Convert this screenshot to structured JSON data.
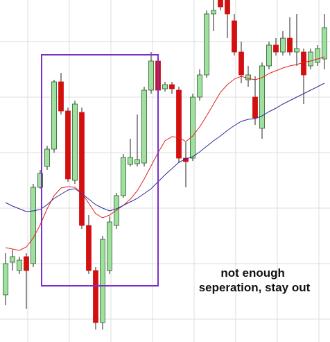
{
  "chart_data": {
    "type": "candlestick",
    "ylim": [
      0,
      493
    ],
    "up_color": "#9fe09f",
    "down_color": "#d40f0f",
    "candles": [
      {
        "open": 68,
        "high": 128,
        "low": 53,
        "close": 113
      },
      {
        "open": 115,
        "high": 133,
        "low": 103,
        "close": 123
      },
      {
        "open": 103,
        "high": 123,
        "low": 98,
        "close": 118
      },
      {
        "open": 123,
        "high": 128,
        "low": 48,
        "close": 103
      },
      {
        "open": 113,
        "high": 228,
        "low": 108,
        "close": 223
      },
      {
        "open": 223,
        "high": 248,
        "low": 221,
        "close": 243
      },
      {
        "open": 253,
        "high": 283,
        "low": 248,
        "close": 278
      },
      {
        "open": 278,
        "high": 378,
        "low": 273,
        "close": 375
      },
      {
        "open": 375,
        "high": 388,
        "low": 328,
        "close": 333
      },
      {
        "open": 333,
        "high": 338,
        "low": 231,
        "close": 235
      },
      {
        "open": 233,
        "high": 348,
        "low": 228,
        "close": 343
      },
      {
        "open": 331,
        "high": 338,
        "low": 163,
        "close": 168
      },
      {
        "open": 168,
        "high": 183,
        "low": 98,
        "close": 103
      },
      {
        "open": 103,
        "high": 108,
        "low": 18,
        "close": 28
      },
      {
        "open": 28,
        "high": 153,
        "low": 18,
        "close": 148
      },
      {
        "open": 103,
        "high": 181,
        "low": 98,
        "close": 173
      },
      {
        "open": 168,
        "high": 215,
        "low": 163,
        "close": 211
      },
      {
        "open": 211,
        "high": 271,
        "low": 208,
        "close": 266
      },
      {
        "open": 256,
        "high": 293,
        "low": 253,
        "close": 266
      },
      {
        "open": 257,
        "high": 328,
        "low": 253,
        "close": 263
      },
      {
        "open": 258,
        "high": 368,
        "low": 253,
        "close": 363
      },
      {
        "open": 363,
        "high": 418,
        "low": 358,
        "close": 405
      },
      {
        "open": 405,
        "high": 408,
        "low": 318,
        "close": 363
      },
      {
        "open": 365,
        "high": 375,
        "low": 361,
        "close": 371
      },
      {
        "open": 371,
        "high": 375,
        "low": 358,
        "close": 365
      },
      {
        "open": 363,
        "high": 368,
        "low": 258,
        "close": 265
      },
      {
        "open": 265,
        "high": 288,
        "low": 223,
        "close": 260
      },
      {
        "open": 265,
        "high": 358,
        "low": 261,
        "close": 353
      },
      {
        "open": 353,
        "high": 393,
        "low": 348,
        "close": 385
      },
      {
        "open": 385,
        "high": 478,
        "low": 381,
        "close": 473
      },
      {
        "open": 473,
        "high": 493,
        "low": 448,
        "close": 478
      },
      {
        "open": 493,
        "high": 493,
        "low": 478,
        "close": 483
      },
      {
        "open": 493,
        "high": 493,
        "low": 438,
        "close": 473
      },
      {
        "open": 463,
        "high": 473,
        "low": 413,
        "close": 418
      },
      {
        "open": 418,
        "high": 433,
        "low": 373,
        "close": 385
      },
      {
        "open": 378,
        "high": 398,
        "low": 368,
        "close": 385
      },
      {
        "open": 353,
        "high": 383,
        "low": 313,
        "close": 323
      },
      {
        "open": 308,
        "high": 403,
        "low": 293,
        "close": 398
      },
      {
        "open": 398,
        "high": 433,
        "low": 393,
        "close": 428
      },
      {
        "open": 428,
        "high": 438,
        "low": 413,
        "close": 418
      },
      {
        "open": 418,
        "high": 448,
        "low": 413,
        "close": 438
      },
      {
        "open": 438,
        "high": 468,
        "low": 413,
        "close": 418
      },
      {
        "open": 418,
        "high": 473,
        "low": 398,
        "close": 423
      },
      {
        "open": 418,
        "high": 423,
        "low": 343,
        "close": 385
      },
      {
        "open": 398,
        "high": 423,
        "low": 393,
        "close": 418
      },
      {
        "open": 403,
        "high": 428,
        "low": 398,
        "close": 423
      },
      {
        "open": 408,
        "high": 473,
        "low": 393,
        "close": 453
      }
    ],
    "series": [
      {
        "color": "#e02020",
        "values": [
          136,
          134,
          132,
          137,
          150,
          169,
          192,
          211,
          222,
          224,
          223,
          215,
          200,
          185,
          179,
          183,
          190,
          197,
          206,
          218,
          235,
          254,
          273,
          290,
          296,
          295,
          289,
          297,
          310,
          326,
          343,
          360,
          371,
          379,
          383,
          380,
          378,
          381,
          387,
          391,
          395,
          398,
          400,
          403,
          405,
          408,
          411
        ]
      },
      {
        "color": "#2a2a9a",
        "values": [
          201,
          196,
          192,
          188,
          189,
          191,
          198,
          207,
          213,
          219,
          221,
          214,
          206,
          198,
          193,
          189,
          192,
          197,
          202,
          207,
          214,
          221,
          231,
          241,
          250,
          259,
          264,
          267,
          274,
          282,
          290,
          297,
          305,
          312,
          318,
          321,
          322,
          326,
          332,
          337,
          343,
          348,
          353,
          358,
          363,
          368,
          373
        ]
      }
    ],
    "annotation": [
      "not enough",
      "seperation, stay out"
    ]
  }
}
